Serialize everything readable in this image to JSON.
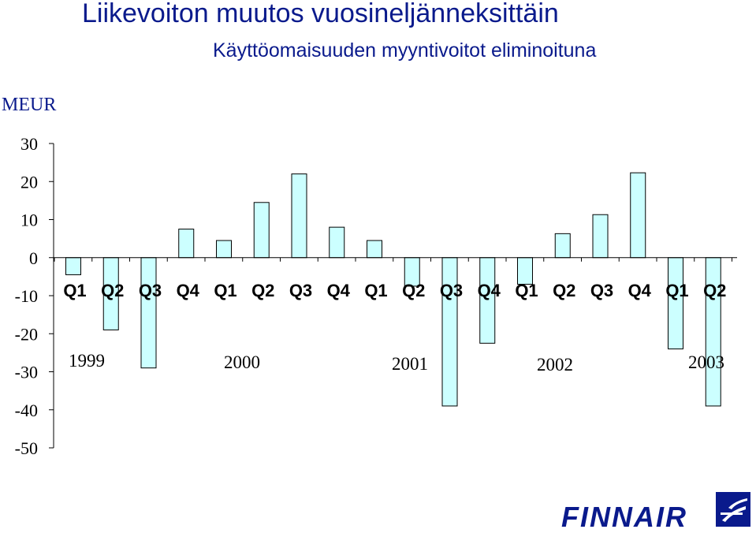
{
  "header": {
    "title": "Liikevoiton muutos vuosineljänneksittäin",
    "subtitle": "Käyttöomaisuuden myyntivoitot eliminoituna",
    "unit": "MEUR"
  },
  "logo": {
    "text": "FINNAIR",
    "icon": "finnair-logo-icon",
    "color": "#0a1a8c"
  },
  "chart_data": {
    "type": "bar",
    "title": "Liikevoiton muutos vuosineljänneksittäin",
    "subtitle": "Käyttöomaisuuden myyntivoitot eliminoituna",
    "ylabel": "MEUR",
    "xlabel": "",
    "ylim": [
      -50,
      30
    ],
    "yticks": [
      30,
      20,
      10,
      0,
      -10,
      -20,
      -30,
      -40,
      -50
    ],
    "categories": [
      "Q1",
      "Q2",
      "Q3",
      "Q4",
      "Q1",
      "Q2",
      "Q3",
      "Q4",
      "Q1",
      "Q2",
      "Q3",
      "Q4",
      "Q1",
      "Q2",
      "Q3",
      "Q4",
      "Q1",
      "Q2"
    ],
    "years": [
      "1999",
      "2000",
      "2001",
      "2002",
      "2003"
    ],
    "values": [
      -4.5,
      -19,
      -29,
      7.5,
      4.5,
      14.5,
      22,
      8,
      4.5,
      -7.5,
      -39,
      -22.5,
      -7,
      6.3,
      11.3,
      22.3,
      -24,
      -39
    ],
    "bar_color": "#ccffff",
    "bar_edge": "#000000",
    "grid": false
  }
}
